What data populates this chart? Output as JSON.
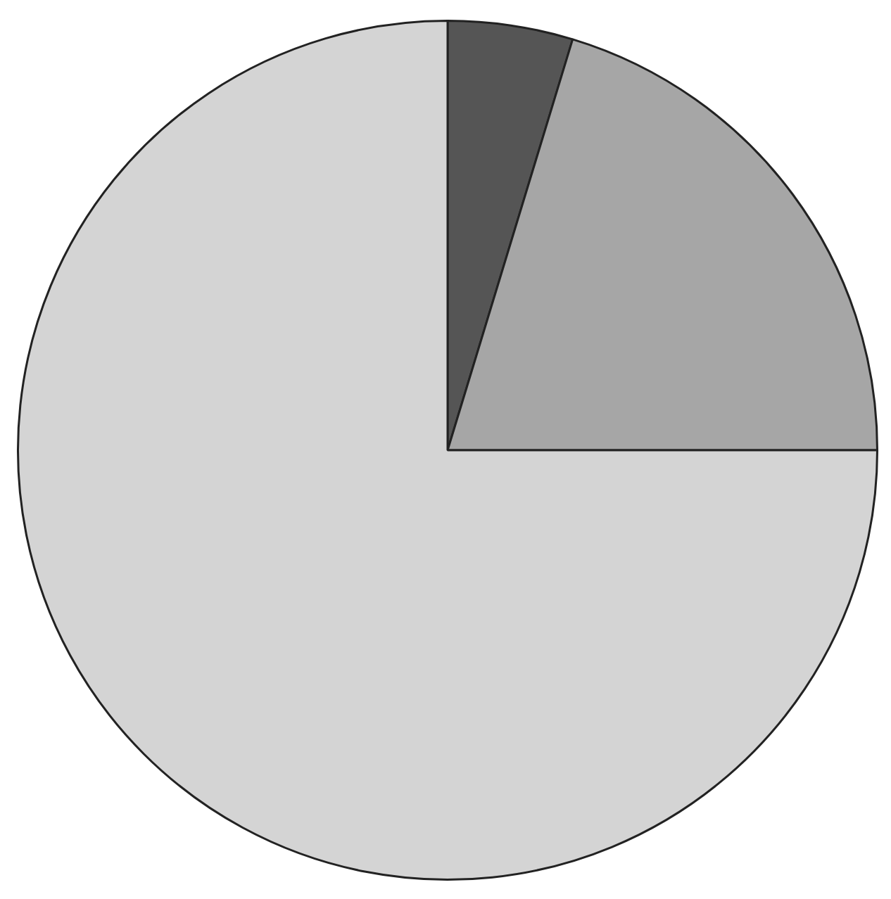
{
  "chart_data": {
    "type": "pie",
    "categories": [
      null,
      null,
      null
    ],
    "values": [
      4.7,
      20.3,
      75
    ],
    "colors": [
      "#555555",
      "#a6a6a6",
      "#d4d4d4"
    ]
  }
}
